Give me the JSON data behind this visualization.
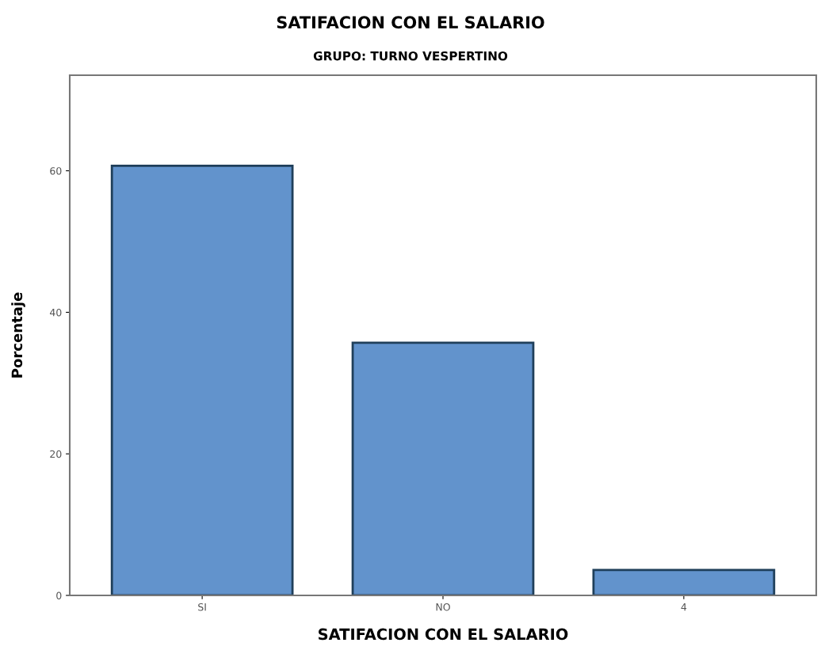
{
  "chart_data": {
    "type": "bar",
    "title": "SATIFACION CON EL SALARIO",
    "subtitle": "GRUPO: TURNO VESPERTINO",
    "xlabel": "SATIFACION CON EL SALARIO",
    "ylabel": "Porcentaje",
    "categories": [
      "SI",
      "NO",
      "4"
    ],
    "values": [
      60.7,
      35.7,
      3.6
    ],
    "color": "#6293cc",
    "ylim": [
      0,
      73.5
    ],
    "yticks": [
      0,
      20,
      40,
      60
    ],
    "grid": false
  }
}
